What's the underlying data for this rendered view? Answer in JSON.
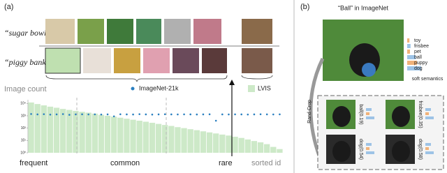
{
  "panel_a": {
    "label": "(a)",
    "row_labels": [
      "“sugar bowl”",
      "“piggy bank”"
    ],
    "chart": {
      "type": "bar",
      "ylabel": "Image count",
      "log_scale": true,
      "ylim": [
        1,
        20000
      ],
      "yticks": [
        {
          "value": 1,
          "label": "10⁰"
        },
        {
          "value": 10,
          "label": "10¹"
        },
        {
          "value": 100,
          "label": "10²"
        },
        {
          "value": 1000,
          "label": "10³"
        },
        {
          "value": 10000,
          "label": "10⁴"
        }
      ],
      "series": [
        {
          "name": "LVIS",
          "type": "bar",
          "color": "#cde9c8",
          "values": [
            12000,
            9000,
            7000,
            5500,
            4500,
            3600,
            3000,
            2500,
            2100,
            1800,
            1500,
            1200,
            1000,
            850,
            700,
            580,
            480,
            400,
            330,
            270,
            220,
            180,
            150,
            120,
            100,
            82,
            68,
            55,
            45,
            37,
            30,
            25,
            20,
            16,
            12,
            9,
            7,
            5,
            3,
            2
          ]
        },
        {
          "name": "ImageNet-21k",
          "type": "scatter",
          "color": "#2a7fc0",
          "values": [
            1400,
            1300,
            1350,
            1250,
            1300,
            1380,
            1200,
            1300,
            1320,
            1290,
            1310,
            1270,
            1300,
            900,
            1330,
            1300,
            1280,
            1350,
            1300,
            1260,
            1300,
            1340,
            1300,
            1290,
            1310,
            1300,
            1280,
            1300,
            1320,
            400,
            1300,
            1290,
            1310,
            1300,
            1270,
            1300,
            1330,
            1300,
            1290,
            1310
          ]
        }
      ],
      "region_labels": [
        "frequent",
        "common",
        "rare"
      ],
      "xlabel": "sorted id"
    }
  },
  "panel_b": {
    "label": "(b)",
    "title": "“Ball” in ImageNet",
    "soft_semantics": {
      "labels": [
        "toy",
        "frisbee",
        "pet",
        "ball",
        "puppy",
        "dog"
      ],
      "values": [
        0.08,
        0.12,
        0.1,
        0.3,
        0.35,
        0.5
      ],
      "colors": [
        "#f0b27a",
        "#9dc3e6",
        "#f0b27a",
        "#9dc3e6",
        "#f0b27a",
        "#9dc3e6"
      ],
      "caption": "soft semantics"
    },
    "side_label": "Rand Crop",
    "crops": [
      "ball(0.19)",
      "frisbee(0.35)",
      "dog(0.54)",
      "dog(0.58)"
    ]
  }
}
